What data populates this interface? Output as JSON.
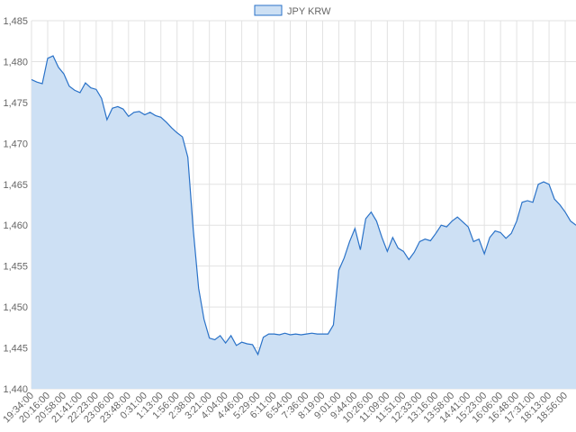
{
  "chart_data": {
    "type": "area",
    "categories": [
      "19:34:00",
      null,
      null,
      "20:16:00",
      null,
      null,
      "20:58:00",
      null,
      null,
      "21:41:00",
      null,
      null,
      "22:23:00",
      null,
      null,
      "23:06:00",
      null,
      null,
      "23:48:00",
      null,
      null,
      "0:31:00",
      null,
      null,
      "1:13:00",
      null,
      null,
      "1:56:00",
      null,
      null,
      "2:38:00",
      null,
      null,
      "3:21:00",
      null,
      null,
      "4:04:00",
      null,
      null,
      "4:46:00",
      null,
      null,
      "5:29:00",
      null,
      null,
      "6:11:00",
      null,
      null,
      "6:54:00",
      null,
      null,
      "7:36:00",
      null,
      null,
      "8:19:00",
      null,
      null,
      "9:01:00",
      null,
      null,
      "9:44:00",
      null,
      null,
      "10:26:00",
      null,
      null,
      "11:09:00",
      null,
      null,
      "11:51:00",
      null,
      null,
      "12:33:00",
      null,
      null,
      "13:16:00",
      null,
      null,
      "13:58:00",
      null,
      null,
      "14:41:00",
      null,
      null,
      "15:23:00",
      null,
      null,
      "16:06:00",
      null,
      null,
      "16:48:00",
      null,
      null,
      "17:31:00",
      null,
      null,
      "18:13:00",
      null,
      null,
      "18:56:00",
      null,
      null
    ],
    "series": [
      {
        "name": "JPY KRW",
        "color": "#2a72c8",
        "fill": "#cde0f4",
        "values": [
          1477.8,
          1477.5,
          1477.3,
          1480.4,
          1480.7,
          1479.3,
          1478.5,
          1477,
          1476.5,
          1476.2,
          1477.4,
          1476.8,
          1476.6,
          1475.5,
          1472.9,
          1474.3,
          1474.5,
          1474.2,
          1473.3,
          1473.8,
          1473.9,
          1473.5,
          1473.8,
          1473.4,
          1473.2,
          1472.6,
          1471.9,
          1471.3,
          1470.8,
          1468.3,
          1459.5,
          1452.3,
          1448.5,
          1446.2,
          1446,
          1446.5,
          1445.6,
          1446.5,
          1445.3,
          1445.7,
          1445.5,
          1445.4,
          1444.2,
          1446.3,
          1446.7,
          1446.7,
          1446.6,
          1446.8,
          1446.6,
          1446.7,
          1446.6,
          1446.7,
          1446.8,
          1446.7,
          1446.7,
          1446.7,
          1447.8,
          1454.5,
          1456,
          1458,
          1459.6,
          1457,
          1460.8,
          1461.6,
          1460.5,
          1458.5,
          1456.8,
          1458.5,
          1457.2,
          1456.8,
          1455.8,
          1456.7,
          1458,
          1458.3,
          1458.1,
          1459,
          1460,
          1459.8,
          1460.5,
          1461,
          1460.4,
          1459.8,
          1458,
          1458.3,
          1456.5,
          1458.5,
          1459.3,
          1459.1,
          1458.4,
          1459,
          1460.5,
          1462.8,
          1463,
          1462.8,
          1465,
          1465.3,
          1465,
          1463.2,
          1462.5,
          1461.6,
          1460.5,
          1460
        ]
      }
    ],
    "ylim": [
      1440,
      1485
    ],
    "yticks": [
      {
        "value": 1440,
        "label": "1,440"
      },
      {
        "value": 1445,
        "label": "1,445"
      },
      {
        "value": 1450,
        "label": "1,450"
      },
      {
        "value": 1455,
        "label": "1,455"
      },
      {
        "value": 1460,
        "label": "1,460"
      },
      {
        "value": 1465,
        "label": "1,465"
      },
      {
        "value": 1470,
        "label": "1,470"
      },
      {
        "value": 1475,
        "label": "1,475"
      },
      {
        "value": 1480,
        "label": "1,480"
      },
      {
        "value": 1485,
        "label": "1,485"
      }
    ],
    "grid": true,
    "legend": "top"
  }
}
